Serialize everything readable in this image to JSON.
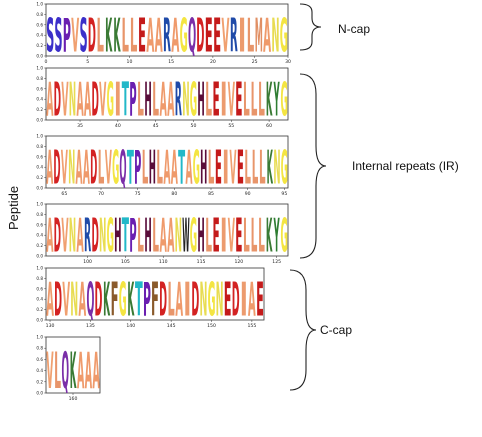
{
  "y_axis_title": "Peptide",
  "y_tick_labels": [
    "0.0",
    "0.2",
    "0.4",
    "0.6",
    "0.8",
    "1.0"
  ],
  "groups": [
    {
      "label": "N-cap"
    },
    {
      "label": "Internal repeats (IR)"
    },
    {
      "label": "C-cap"
    }
  ],
  "panels": [
    {
      "sequence": "SSPVSDLKKLLEAARAGQDEEVRILMANG",
      "x_ticks": [
        {
          "pos": 0,
          "label": "0"
        },
        {
          "pos": 5,
          "label": "5"
        },
        {
          "pos": 10,
          "label": "10"
        },
        {
          "pos": 15,
          "label": "15"
        },
        {
          "pos": 20,
          "label": "20"
        },
        {
          "pos": 25,
          "label": "25"
        },
        {
          "pos": 30,
          "label": "30"
        }
      ]
    },
    {
      "sequence": "ADVNAADVGITPLHLAARNGHLEIVELLLKYG",
      "x_ticks": [
        {
          "pos": 4,
          "label": "35"
        },
        {
          "pos": 9,
          "label": "40"
        },
        {
          "pos": 14,
          "label": "45"
        },
        {
          "pos": 19,
          "label": "50"
        },
        {
          "pos": 24,
          "label": "55"
        },
        {
          "pos": 29,
          "label": "60"
        }
      ]
    },
    {
      "sequence": "ADVNAADLVGQTPLHLAATAGHLEIVELLLKNG",
      "x_ticks": [
        {
          "pos": 2,
          "label": "65"
        },
        {
          "pos": 7,
          "label": "70"
        },
        {
          "pos": 12,
          "label": "75"
        },
        {
          "pos": 17,
          "label": "80"
        },
        {
          "pos": 22,
          "label": "85"
        },
        {
          "pos": 27,
          "label": "90"
        },
        {
          "pos": 32,
          "label": "95"
        }
      ]
    },
    {
      "sequence": "ADVNARDNGHTPLHLAANWGHLEIVELLLKYG",
      "x_ticks": [
        {
          "pos": 5,
          "label": "100"
        },
        {
          "pos": 10,
          "label": "105"
        },
        {
          "pos": 15,
          "label": "110"
        },
        {
          "pos": 20,
          "label": "115"
        },
        {
          "pos": 25,
          "label": "120"
        },
        {
          "pos": 30,
          "label": "125"
        }
      ]
    },
    {
      "sequence": "ADVNAQDKFGKTPFDLAIDNGNEDIAE",
      "x_ticks": [
        {
          "pos": 0,
          "label": "130"
        },
        {
          "pos": 5,
          "label": "135"
        },
        {
          "pos": 10,
          "label": "140"
        },
        {
          "pos": 15,
          "label": "145"
        },
        {
          "pos": 20,
          "label": "150"
        },
        {
          "pos": 25,
          "label": "155"
        }
      ]
    },
    {
      "sequence": "VLQKAAA",
      "x_ticks": [
        {
          "pos": 3,
          "label": "160"
        }
      ]
    }
  ],
  "residue_colors": {
    "A": "#ef9a6b",
    "V": "#f0a070",
    "L": "#e8956a",
    "I": "#ec9b6e",
    "M": "#e08f64",
    "D": "#d32222",
    "E": "#c41a1a",
    "K": "#3a7a34",
    "R": "#1f4aa8",
    "H": "#5a0d3a",
    "G": "#f4e542",
    "N": "#e8dc52",
    "Q": "#7a2ea8",
    "S": "#3b2fc9",
    "T": "#22b8c8",
    "P": "#6a1fb0",
    "F": "#8a5a2b",
    "Y": "#2e7d32",
    "W": "#222222",
    "C": "#d4a020"
  }
}
